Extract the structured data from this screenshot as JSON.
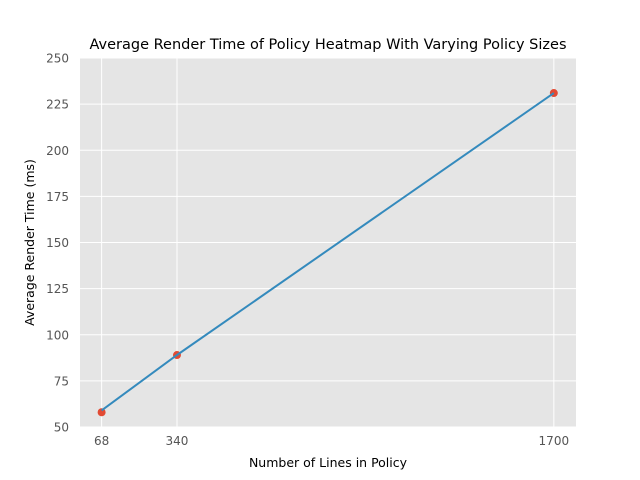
{
  "chart_data": {
    "type": "scatter",
    "title": "Average Render Time of Policy Heatmap With Varying Policy Sizes",
    "xlabel": "Number of Lines in Policy",
    "ylabel": "Average Render Time (ms)",
    "x_ticks": [
      68,
      340,
      1700
    ],
    "y_ticks": [
      50,
      75,
      100,
      125,
      150,
      175,
      200,
      225,
      250
    ],
    "xlim": [
      -10,
      1780
    ],
    "ylim": [
      50,
      250
    ],
    "grid": true,
    "style": "ggplot",
    "series": [
      {
        "kind": "points",
        "color": "#e24a33",
        "x": [
          68,
          340,
          1700
        ],
        "y": [
          58,
          89,
          231
        ]
      },
      {
        "kind": "fit-line",
        "color": "#348abd",
        "x": [
          68,
          340,
          1700
        ],
        "y": [
          59,
          89,
          231
        ]
      }
    ]
  }
}
